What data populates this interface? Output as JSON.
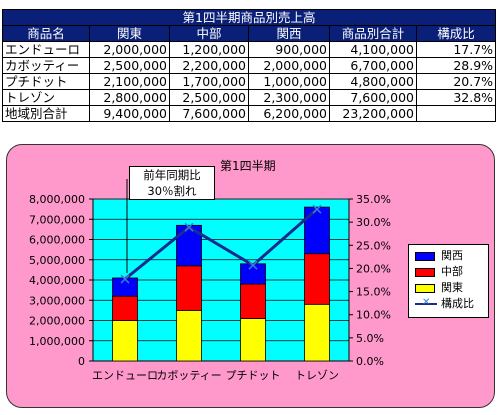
{
  "table": {
    "title": "第1四半期商品別売上高",
    "headers": [
      "商品名",
      "関東",
      "中部",
      "関西",
      "商品別合計",
      "構成比"
    ],
    "rows": [
      [
        "エンドューロ",
        "2,000,000",
        "1,200,000",
        "900,000",
        "4,100,000",
        "17.7%"
      ],
      [
        "カボッティー",
        "2,500,000",
        "2,200,000",
        "2,000,000",
        "6,700,000",
        "28.9%"
      ],
      [
        "プチドット",
        "2,100,000",
        "1,700,000",
        "1,000,000",
        "4,800,000",
        "20.7%"
      ],
      [
        "トレゾン",
        "2,800,000",
        "2,500,000",
        "2,300,000",
        "7,600,000",
        "32.8%"
      ]
    ],
    "total_row": [
      "地域別合計",
      "9,400,000",
      "7,600,000",
      "6,200,000",
      "23,200,000",
      ""
    ]
  },
  "chart_data": {
    "type": "bar",
    "stacked": true,
    "title": "第1四半期",
    "categories": [
      "エンドューロ",
      "カボッティー",
      "プチドット",
      "トレゾン"
    ],
    "series": [
      {
        "name": "関東",
        "values": [
          2000000,
          2500000,
          2100000,
          2800000
        ],
        "color": "#ffff00"
      },
      {
        "name": "中部",
        "values": [
          1200000,
          2200000,
          1700000,
          2500000
        ],
        "color": "#ff0000"
      },
      {
        "name": "関西",
        "values": [
          900000,
          2000000,
          1000000,
          2300000
        ],
        "color": "#0000ff"
      }
    ],
    "line_series": {
      "name": "構成比",
      "values": [
        0.177,
        0.289,
        0.207,
        0.328
      ],
      "color": "#1a2b90",
      "marker_color": "#3b7bd8",
      "axis": "secondary"
    },
    "ylim": [
      0,
      8000000
    ],
    "y2lim": [
      0,
      0.35
    ],
    "y_ticks": [
      "0",
      "1,000,000",
      "2,000,000",
      "3,000,000",
      "4,000,000",
      "5,000,000",
      "6,000,000",
      "7,000,000",
      "8,000,000"
    ],
    "y2_ticks": [
      "0.0%",
      "5.0%",
      "10.0%",
      "15.0%",
      "20.0%",
      "25.0%",
      "30.0%",
      "35.0%"
    ],
    "plot_background": "#00ffff",
    "chart_background": "#ff99cc",
    "legend_position": "right",
    "grid": true,
    "annotation": {
      "line1": "前年同期比",
      "line2": "30％割れ"
    }
  }
}
